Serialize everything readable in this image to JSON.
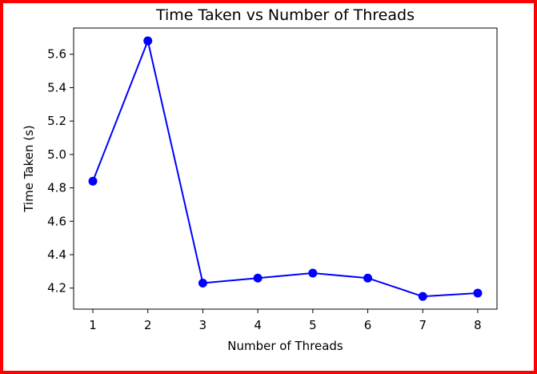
{
  "chart_data": {
    "type": "line",
    "title": "Time Taken vs Number of Threads",
    "xlabel": "Number of Threads",
    "ylabel": "Time Taken (s)",
    "x": [
      1,
      2,
      3,
      4,
      5,
      6,
      7,
      8
    ],
    "series": [
      {
        "values": [
          4.84,
          5.68,
          4.23,
          4.26,
          4.29,
          4.26,
          4.15,
          4.17
        ]
      }
    ],
    "xticks": [
      "1",
      "2",
      "3",
      "4",
      "5",
      "6",
      "7",
      "8"
    ],
    "yticks": [
      "4.2",
      "4.4",
      "4.6",
      "4.8",
      "5.0",
      "5.2",
      "5.4",
      "5.6"
    ],
    "xlim": [
      0.65,
      8.35
    ],
    "ylim": [
      4.074,
      5.757
    ],
    "grid": false,
    "line_color": "#0000ff",
    "marker": "circle",
    "frame_color": "#ff0000"
  }
}
